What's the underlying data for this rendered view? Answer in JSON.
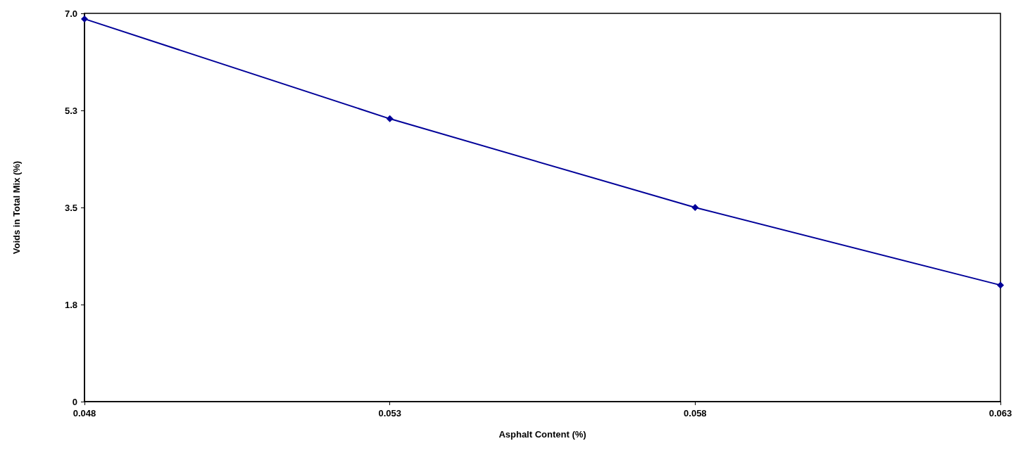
{
  "chart_data": {
    "type": "line",
    "xlabel": "Asphalt Content (%)",
    "ylabel": "Voids in Total Mix (%)",
    "x": [
      0.048,
      0.053,
      0.058,
      0.063
    ],
    "series": [
      {
        "color": "#000099",
        "values": [
          6.9,
          5.1,
          3.5,
          2.1
        ]
      }
    ],
    "xlim": [
      0.048,
      0.063
    ],
    "xticks": [
      0.048,
      0.053,
      0.058,
      0.063
    ],
    "ylim": [
      0,
      7
    ],
    "yticks": [
      0,
      {
        "value": 1.75,
        "label": "1.8"
      },
      3.5,
      {
        "value": 5.25,
        "label": "5.3"
      },
      {
        "value": 7,
        "label": "7.0"
      }
    ],
    "marker": "diamond",
    "line_style": "solid"
  }
}
